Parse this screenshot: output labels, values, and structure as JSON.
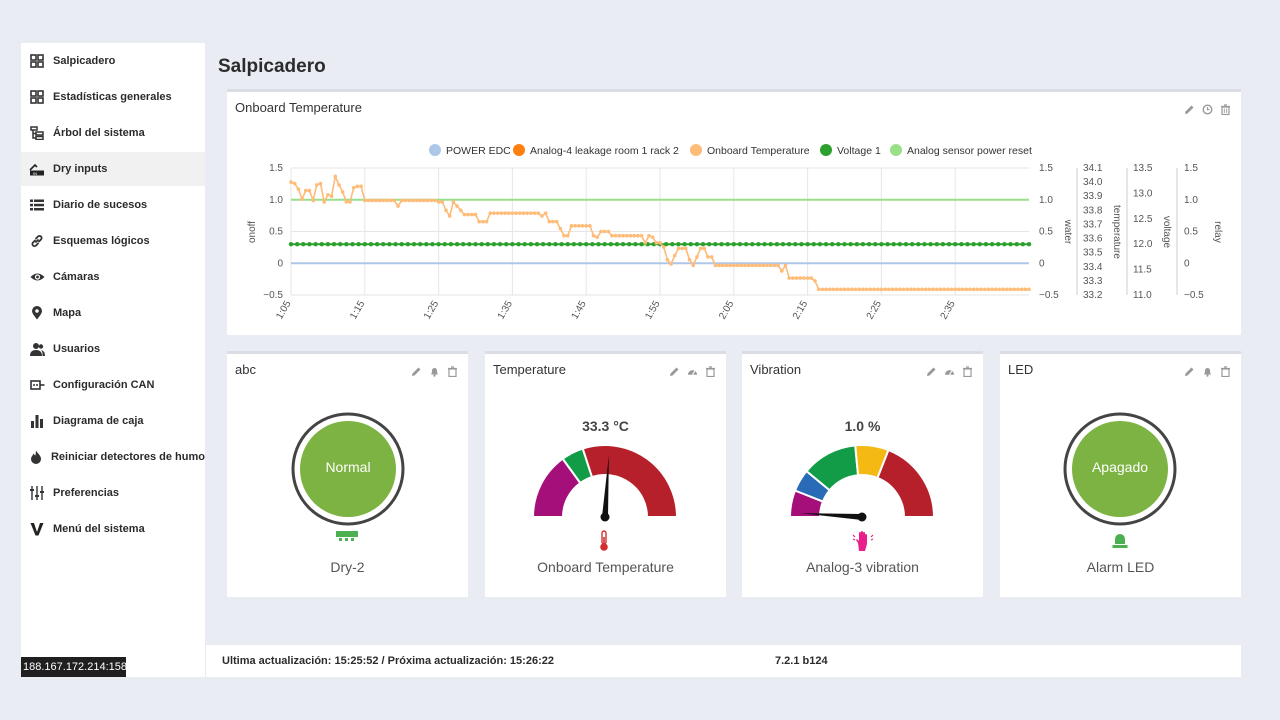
{
  "sidebar": {
    "items": [
      {
        "label": "Salpicadero",
        "icon": "grid-icon"
      },
      {
        "label": "Estadísticas generales",
        "icon": "grid-icon"
      },
      {
        "label": "Árbol del sistema",
        "icon": "tree-icon"
      },
      {
        "label": "Dry inputs",
        "icon": "dry-input-icon",
        "active": true
      },
      {
        "label": "Diario de sucesos",
        "icon": "list-icon"
      },
      {
        "label": "Esquemas lógicos",
        "icon": "link-icon"
      },
      {
        "label": "Cámaras",
        "icon": "eye-icon"
      },
      {
        "label": "Mapa",
        "icon": "map-pin-icon"
      },
      {
        "label": "Usuarios",
        "icon": "users-icon"
      },
      {
        "label": "Configuración CAN",
        "icon": "can-icon"
      },
      {
        "label": "Diagrama de caja",
        "icon": "bar-chart-icon"
      },
      {
        "label": "Reiniciar detectores de humo",
        "icon": "fire-icon"
      },
      {
        "label": "Preferencias",
        "icon": "sliders-icon"
      },
      {
        "label": "Menú del sistema",
        "icon": "v-logo-icon"
      }
    ]
  },
  "ip_address": "188.167.172.214:158",
  "page_title": "Salpicadero",
  "chart_card": {
    "title": "Onboard Temperature",
    "tools": [
      "pencil-icon",
      "clock-icon",
      "trash-icon"
    ]
  },
  "chart_data": {
    "type": "line",
    "title": "",
    "legend_position": "top",
    "grid": true,
    "series": [
      {
        "name": "POWER EDC",
        "color": "#aec7e8",
        "axis": "onoff",
        "values": [
          0,
          0
        ]
      },
      {
        "name": "Analog-4 leakage room 1 rack 2",
        "color": "#ff7f0e",
        "axis": "water",
        "values": []
      },
      {
        "name": "Onboard Temperature",
        "color": "#ffbb78",
        "axis": "temperature",
        "x": [
          0,
          1,
          2,
          3,
          4,
          5,
          6,
          7,
          8,
          9,
          10,
          11,
          12,
          13,
          14,
          15,
          16,
          17,
          18,
          19,
          20,
          21,
          22,
          23,
          24,
          25,
          26,
          27,
          28,
          29,
          30,
          31,
          32,
          33,
          34,
          35,
          36,
          37,
          38,
          39,
          40,
          41,
          42,
          43,
          44,
          45,
          46,
          47,
          48,
          49,
          50,
          51,
          52,
          53,
          54,
          55,
          56,
          57,
          58,
          59,
          60,
          61,
          62,
          63,
          64,
          65,
          66,
          67,
          68,
          69,
          70,
          71,
          72,
          73,
          74,
          75,
          76,
          77,
          78,
          79,
          80,
          81,
          82,
          83,
          84,
          85,
          86,
          87,
          88,
          89,
          90,
          91,
          92,
          93,
          94,
          95,
          96,
          97,
          98,
          99,
          100,
          101,
          102,
          103,
          104,
          105,
          106,
          107,
          108,
          109,
          110,
          111,
          112,
          113,
          114,
          115,
          116,
          117,
          118,
          119,
          120,
          121,
          122,
          123,
          124,
          125,
          126,
          127,
          128,
          129,
          130,
          131,
          132,
          133,
          134,
          135,
          136,
          137,
          138,
          139,
          140,
          141,
          142,
          143,
          144,
          145,
          146,
          147,
          148,
          149,
          150,
          151,
          152,
          153,
          154,
          155,
          156,
          157,
          158,
          159,
          160,
          161,
          162,
          163,
          164,
          165,
          166,
          167,
          168,
          169,
          170,
          171,
          172,
          173,
          174,
          175,
          176,
          177,
          178,
          179,
          180,
          181,
          182,
          183,
          184,
          185,
          186,
          187,
          188,
          189,
          190,
          191,
          192,
          193,
          194,
          195,
          196,
          197,
          198,
          199,
          200
        ],
        "values": [
          34.0,
          33.99,
          33.95,
          33.88,
          33.94,
          33.94,
          33.87,
          33.98,
          33.99,
          33.86,
          33.91,
          33.9,
          34.04,
          33.98,
          33.93,
          33.86,
          33.86,
          33.96,
          33.97,
          33.97,
          33.87,
          33.87,
          33.87,
          33.87,
          33.87,
          33.87,
          33.87,
          33.87,
          33.87,
          33.83,
          33.87,
          33.87,
          33.87,
          33.87,
          33.87,
          33.87,
          33.87,
          33.87,
          33.87,
          33.87,
          33.86,
          33.86,
          33.8,
          33.76,
          33.86,
          33.83,
          33.8,
          33.77,
          33.77,
          33.77,
          33.77,
          33.72,
          33.72,
          33.72,
          33.78,
          33.78,
          33.78,
          33.78,
          33.78,
          33.78,
          33.78,
          33.78,
          33.78,
          33.78,
          33.78,
          33.78,
          33.78,
          33.78,
          33.76,
          33.78,
          33.72,
          33.72,
          33.72,
          33.67,
          33.62,
          33.62,
          33.69,
          33.69,
          33.69,
          33.69,
          33.69,
          33.69,
          33.62,
          33.61,
          33.65,
          33.65,
          33.65,
          33.62,
          33.62,
          33.62,
          33.62,
          33.62,
          33.62,
          33.62,
          33.62,
          33.62,
          33.57,
          33.62,
          33.61,
          33.57,
          33.57,
          33.54,
          33.45,
          33.42,
          33.48,
          33.53,
          33.53,
          33.53,
          33.45,
          33.41,
          33.47,
          33.53,
          33.53,
          33.47,
          33.47,
          33.41,
          33.41,
          33.41,
          33.41,
          33.41,
          33.41,
          33.41,
          33.41,
          33.41,
          33.41,
          33.41,
          33.41,
          33.41,
          33.41,
          33.41,
          33.41,
          33.41,
          33.41,
          33.37,
          33.41,
          33.32,
          33.32,
          33.32,
          33.32,
          33.32,
          33.32,
          33.32,
          33.3,
          33.24,
          33.24,
          33.24,
          33.24,
          33.24,
          33.24,
          33.24,
          33.24,
          33.24,
          33.24,
          33.24,
          33.24,
          33.24,
          33.24,
          33.24,
          33.24,
          33.24,
          33.24,
          33.24,
          33.24,
          33.24,
          33.24,
          33.24,
          33.24,
          33.24,
          33.24,
          33.24,
          33.24,
          33.24,
          33.24,
          33.24,
          33.24,
          33.24,
          33.24,
          33.24,
          33.24,
          33.24,
          33.24,
          33.24,
          33.24,
          33.24,
          33.24,
          33.24,
          33.24,
          33.24,
          33.24,
          33.24,
          33.24,
          33.24,
          33.24,
          33.24,
          33.24,
          33.24,
          33.24,
          33.24,
          33.24,
          33.24,
          33.24
        ]
      },
      {
        "name": "Voltage 1",
        "color": "#2ca02c",
        "axis": "voltage",
        "values": [
          12.0,
          12.0
        ]
      },
      {
        "name": "Analog sensor power reset",
        "color": "#98df8a",
        "axis": "relay",
        "values": [
          1.0,
          1.0
        ]
      }
    ],
    "x_ticks": [
      "1:05",
      "1:15",
      "1:25",
      "1:35",
      "1:45",
      "1:55",
      "2:05",
      "2:15",
      "2:25",
      "2:35"
    ],
    "axes": {
      "onoff": {
        "label": "onoff",
        "ticks": [
          "1.5",
          "1.0",
          "0.5",
          "0",
          "−0.5"
        ],
        "ylim": [
          -0.5,
          1.5
        ]
      },
      "water": {
        "label": "water",
        "ticks": [
          "1.5",
          "1.0",
          "0.5",
          "0",
          "−0.5"
        ],
        "ylim": [
          -0.5,
          1.5
        ]
      },
      "temperature": {
        "label": "temperature",
        "ticks": [
          "34.1",
          "34.0",
          "33.9",
          "33.8",
          "33.7",
          "33.6",
          "33.5",
          "33.4",
          "33.3",
          "33.2"
        ],
        "ylim": [
          33.2,
          34.1
        ]
      },
      "voltage": {
        "label": "voltage",
        "ticks": [
          "13.5",
          "13.0",
          "12.5",
          "12.0",
          "11.5",
          "11.0"
        ],
        "ylim": [
          11.0,
          13.5
        ]
      },
      "relay": {
        "label": "relay",
        "ticks": [
          "1.5",
          "1.0",
          "0.5",
          "0",
          "−0.5"
        ],
        "ylim": [
          -0.5,
          1.5
        ]
      }
    }
  },
  "widgets": [
    {
      "title": "abc",
      "type": "status",
      "status_text": "Normal",
      "footer": "Dry-2",
      "icon": "dry-contact-icon",
      "tools": [
        "pencil-icon",
        "bell-icon",
        "trash-icon"
      ]
    },
    {
      "title": "Temperature",
      "type": "gauge",
      "readout": "33.3 °C",
      "footer": "Onboard Temperature",
      "icon": "thermometer-icon",
      "tools": [
        "pencil-icon",
        "gauge-icon",
        "trash-icon"
      ],
      "gauge_fraction": 0.52,
      "segments": [
        {
          "from": 0,
          "to": 0.3,
          "color": "#a50f7a"
        },
        {
          "from": 0.3,
          "to": 0.4,
          "color": "#139c48"
        },
        {
          "from": 0.4,
          "to": 1,
          "color": "#b6202a"
        }
      ]
    },
    {
      "title": "Vibration",
      "type": "gauge",
      "readout": "1.0 %",
      "footer": "Analog-3 vibration",
      "icon": "vibration-hand-icon",
      "tools": [
        "pencil-icon",
        "gauge-icon",
        "trash-icon"
      ],
      "gauge_fraction": 0.02,
      "segments": [
        {
          "from": 0,
          "to": 0.12,
          "color": "#a50f7a"
        },
        {
          "from": 0.12,
          "to": 0.22,
          "color": "#2a6bb8"
        },
        {
          "from": 0.22,
          "to": 0.47,
          "color": "#139c48"
        },
        {
          "from": 0.47,
          "to": 0.62,
          "color": "#f5b914"
        },
        {
          "from": 0.62,
          "to": 1,
          "color": "#b6202a"
        }
      ]
    },
    {
      "title": "LED",
      "type": "status",
      "status_text": "Apagado",
      "footer": "Alarm LED",
      "icon": "alarm-lamp-icon",
      "tools": [
        "pencil-icon",
        "bell-icon",
        "trash-icon"
      ]
    }
  ],
  "colors": {
    "status_green": "#7cb342",
    "ring": "#444444",
    "accent_green": "#4caf50",
    "thermo_red": "#d32f2f",
    "vibration_pink": "#e91e8c"
  },
  "footer": {
    "update_text": "Ultima actualización: 15:25:52 / Próxima actualización: 15:26:22",
    "version": "7.2.1 b124"
  }
}
